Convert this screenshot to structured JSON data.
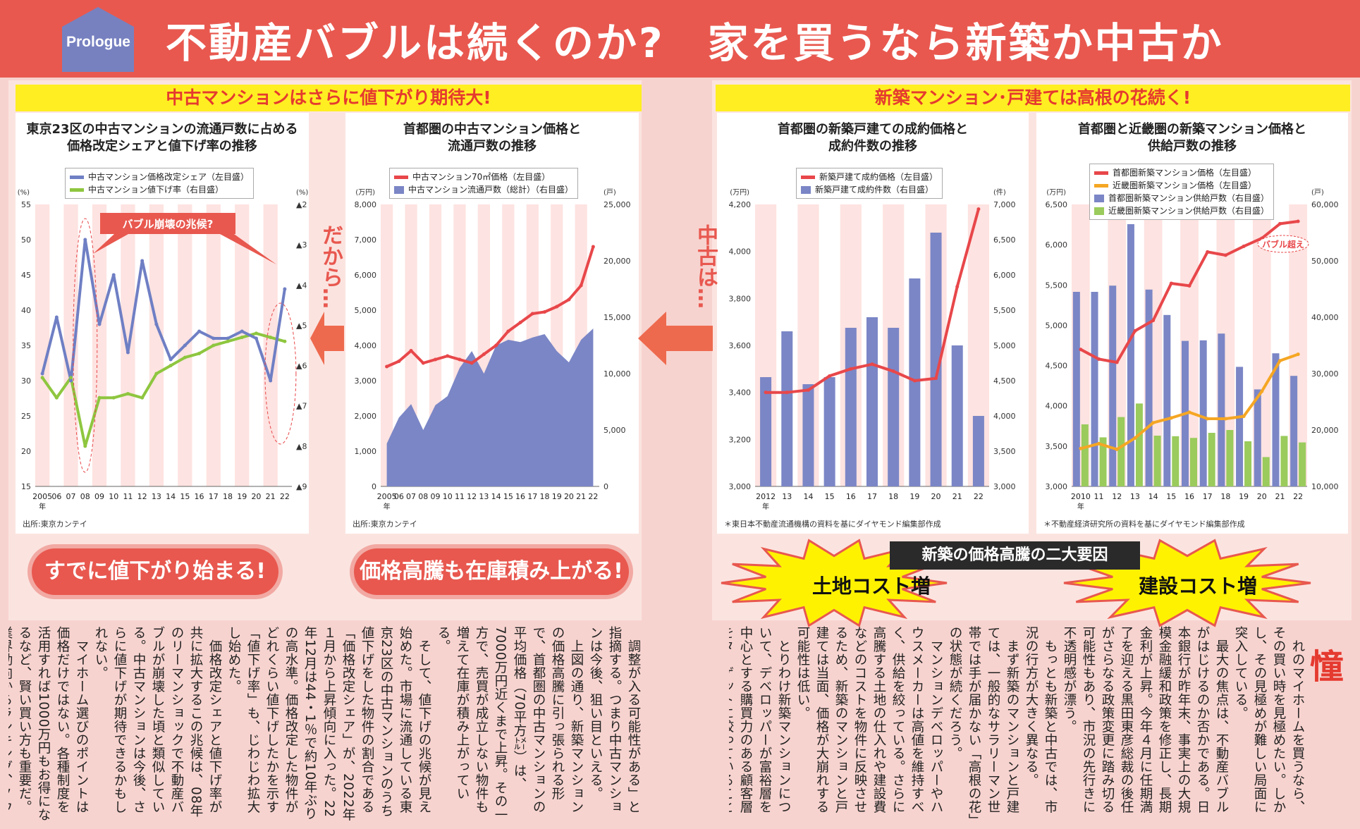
{
  "header": {
    "badge": "Prologue",
    "title": "不動産バブルは続くのか?　家を買うなら新築か中古か"
  },
  "banners": {
    "left": "中古マンションはさらに値下がり期待大!",
    "right": "新築マンション･戸建ては高根の花続く!"
  },
  "arrows": {
    "dakara": "だから…",
    "chuko_wa": "中古は…"
  },
  "pills": {
    "left": "すでに値下がり始まる!",
    "right": "価格高騰も在庫積み上がる!"
  },
  "factors": {
    "title": "新築の価格高騰の二大要因",
    "land": "土地コスト増",
    "construction": "建設コスト増"
  },
  "colors": {
    "header": "#e8584f",
    "banner_bg": "#ffee22",
    "banner_text": "#e53a2f",
    "blue_series": "#6f7fc4",
    "green_series": "#8ec63f",
    "red_series": "#e8474a",
    "orange_series": "#f5a623",
    "bar_blue": "#7b86c6",
    "bar_green": "#9acb5c"
  },
  "charts": {
    "c1": {
      "title": "東京23区の中古マンションの流通戸数に占める\n価格改定シェアと値下げ率の推移",
      "legend": [
        "中古マンション価格改定シェア（左目盛）",
        "中古マンション値下げ率（右目盛）"
      ],
      "left_unit": "(%)",
      "right_unit": "(%)",
      "left_ticks": [
        "55",
        "50",
        "45",
        "40",
        "35",
        "30",
        "25",
        "20",
        "15"
      ],
      "right_ticks": [
        "▲2",
        "▲3",
        "▲4",
        "▲5",
        "▲6",
        "▲7",
        "▲8",
        "▲9"
      ],
      "x_ticks": [
        "2005",
        "06",
        "07",
        "08",
        "09",
        "10",
        "11",
        "12",
        "13",
        "14",
        "15",
        "16",
        "17",
        "18",
        "19",
        "20",
        "21",
        "22"
      ],
      "x_suffix": "年",
      "callout": "バブル崩壊の兆候?",
      "source": "出所:東京カンテイ"
    },
    "c2": {
      "title": "首都圏の中古マンション価格と\n流通戸数の推移",
      "legend": [
        "中古マンション70㎡価格（左目盛）",
        "中古マンション流通戸数（総計）（右目盛）"
      ],
      "left_unit": "(万円)",
      "right_unit": "(戸)",
      "left_ticks": [
        "8,000",
        "7,000",
        "6,000",
        "5,000",
        "4,000",
        "3,000",
        "2,000",
        "1,000",
        "0"
      ],
      "right_ticks": [
        "25,000",
        "20,000",
        "15,000",
        "10,000",
        "5,000",
        "0"
      ],
      "x_ticks": [
        "2005",
        "06",
        "07",
        "08",
        "09",
        "10",
        "11",
        "12",
        "13",
        "14",
        "15",
        "16",
        "17",
        "18",
        "19",
        "20",
        "21",
        "22"
      ],
      "x_suffix": "年",
      "source": "出所:東京カンテイ"
    },
    "c3": {
      "title": "首都圏の新築戸建ての成約価格と\n成約件数の推移",
      "legend": [
        "新築戸建て成約価格（左目盛）",
        "新築戸建て成約件数（右目盛）"
      ],
      "left_unit": "(万円)",
      "right_unit": "(件)",
      "left_ticks": [
        "4,200",
        "4,000",
        "3,800",
        "3,600",
        "3,400",
        "3,200",
        "3,000"
      ],
      "right_ticks": [
        "7,000",
        "6,500",
        "6,000",
        "5,500",
        "5,000",
        "4,500",
        "4,000",
        "3,500",
        "3,000"
      ],
      "x_ticks": [
        "2012",
        "13",
        "14",
        "15",
        "16",
        "17",
        "18",
        "19",
        "20",
        "21",
        "22"
      ],
      "x_suffix": "年",
      "source": "＊東日本不動産流通機構の資料を基にダイヤモンド編集部作成"
    },
    "c4": {
      "title": "首都圏と近畿圏の新築マンション価格と\n供給戸数の推移",
      "legend": [
        "首都圏新築マンション価格（左目盛）",
        "近畿圏新築マンション価格（左目盛）",
        "首都圏新築マンション供給戸数（右目盛）",
        "近畿圏新築マンション供給戸数（右目盛）"
      ],
      "left_unit": "(万円)",
      "right_unit": "(戸)",
      "left_ticks": [
        "6,500",
        "6,000",
        "5,500",
        "5,000",
        "4,500",
        "4,000",
        "3,500",
        "3,000"
      ],
      "right_ticks": [
        "60,000",
        "50,000",
        "40,000",
        "30,000",
        "20,000",
        "10,000"
      ],
      "x_ticks": [
        "2010",
        "11",
        "12",
        "13",
        "14",
        "15",
        "16",
        "17",
        "18",
        "19",
        "20",
        "21",
        "22"
      ],
      "x_suffix": "年",
      "callout": "バブル超え",
      "source": "＊不動産経済研究所の資料を基にダイヤモンド編集部作成"
    }
  },
  "chart_data": [
    {
      "type": "line",
      "title": "東京23区の中古マンションの流通戸数に占める価格改定シェアと値下げ率の推移",
      "x": [
        2005,
        2006,
        2007,
        2008,
        2009,
        2010,
        2011,
        2012,
        2013,
        2014,
        2015,
        2016,
        2017,
        2018,
        2019,
        2020,
        2021,
        2022
      ],
      "series": [
        {
          "name": "中古マンション価格改定シェア（左目盛）",
          "axis": "left",
          "values": [
            31,
            39,
            30,
            50,
            38,
            45,
            34,
            47,
            38,
            33,
            35,
            37,
            36,
            36,
            37,
            36,
            30,
            43
          ]
        },
        {
          "name": "中古マンション値下げ率（右目盛）",
          "axis": "right",
          "values": [
            -6.3,
            -6.8,
            -6.3,
            -8.0,
            -6.8,
            -6.8,
            -6.7,
            -6.8,
            -6.2,
            -6.0,
            -5.8,
            -5.7,
            -5.5,
            -5.4,
            -5.3,
            -5.2,
            -5.3,
            -5.4
          ]
        }
      ],
      "ylim_left": [
        15,
        55
      ],
      "ylim_right": [
        -9,
        -2
      ]
    },
    {
      "type": "area",
      "title": "首都圏の中古マンション価格と流通戸数の推移",
      "x": [
        2005,
        2006,
        2007,
        2008,
        2009,
        2010,
        2011,
        2012,
        2013,
        2014,
        2015,
        2016,
        2017,
        2018,
        2019,
        2020,
        2021,
        2022
      ],
      "series": [
        {
          "name": "中古マンション70㎡価格（左目盛）",
          "type": "line",
          "axis": "left",
          "values": [
            3400,
            3550,
            3850,
            3500,
            3600,
            3700,
            3600,
            3500,
            3750,
            4000,
            4400,
            4650,
            4900,
            4950,
            5100,
            5300,
            5700,
            6800
          ]
        },
        {
          "name": "中古マンション流通戸数（総計）（右目盛）",
          "type": "area",
          "axis": "right",
          "values": [
            3800,
            6100,
            7300,
            5000,
            7200,
            8000,
            10500,
            12000,
            10000,
            12500,
            13000,
            12800,
            13200,
            13500,
            12000,
            11000,
            13000,
            14000
          ]
        }
      ],
      "ylim_left": [
        0,
        8000
      ],
      "ylim_right": [
        0,
        25000
      ]
    },
    {
      "type": "bar",
      "title": "首都圏の新築戸建ての成約価格と成約件数の推移",
      "categories": [
        "2012",
        "13",
        "14",
        "15",
        "16",
        "17",
        "18",
        "19",
        "20",
        "21",
        "22"
      ],
      "series": [
        {
          "name": "新築戸建て成約件数（右目盛）",
          "type": "bar",
          "axis": "right",
          "values": [
            4550,
            5200,
            4450,
            4550,
            5250,
            5400,
            5250,
            5950,
            6600,
            5000,
            4000
          ]
        },
        {
          "name": "新築戸建て成約価格（左目盛）",
          "type": "line",
          "axis": "left",
          "values": [
            3400,
            3400,
            3410,
            3470,
            3500,
            3520,
            3490,
            3450,
            3460,
            3850,
            4180
          ]
        }
      ],
      "ylim_left": [
        3000,
        4200
      ],
      "ylim_right": [
        3000,
        7000
      ]
    },
    {
      "type": "bar",
      "title": "首都圏と近畿圏の新築マンション価格と供給戸数の推移",
      "categories": [
        "2010",
        "11",
        "12",
        "13",
        "14",
        "15",
        "16",
        "17",
        "18",
        "19",
        "20",
        "21",
        "22"
      ],
      "series": [
        {
          "name": "首都圏新築マンション供給戸数（右目盛）",
          "type": "bar",
          "axis": "right",
          "values": [
            44500,
            44500,
            45600,
            56500,
            44900,
            40400,
            35800,
            35900,
            37100,
            31200,
            27200,
            33600,
            29600
          ]
        },
        {
          "name": "近畿圏新築マンション供給戸数（右目盛）",
          "type": "bar",
          "axis": "right",
          "values": [
            21000,
            18700,
            22300,
            24700,
            19000,
            18900,
            18600,
            19500,
            20000,
            18000,
            15200,
            18950,
            17800
          ]
        },
        {
          "name": "首都圏新築マンション価格（左目盛）",
          "type": "line",
          "axis": "left",
          "values": [
            4700,
            4580,
            4540,
            4930,
            5060,
            5520,
            5490,
            5910,
            5870,
            5980,
            6080,
            6260,
            6290
          ]
        },
        {
          "name": "近畿圏新築マンション価格（左目盛）",
          "type": "line",
          "axis": "left",
          "values": [
            3470,
            3530,
            3460,
            3600,
            3790,
            3850,
            3920,
            3840,
            3840,
            3870,
            4180,
            4560,
            4640
          ]
        }
      ],
      "ylim_left": [
        3000,
        6500
      ],
      "ylim_right": [
        10000,
        60000
      ]
    }
  ],
  "article": {
    "columns": [
      "れのマイホームを買うなら、その買い時を見極めたい。しかし、その見極めが難しい局面に突入している。",
      "最大の焦点は、不動産バブルがはじけるのか否かである。日本銀行が昨年末、事実上の大規模金融緩和政策を修正し、長期金利が上昇。今年４月に任期満了を迎える黒田東彦総裁の後任がさらなる政策変更に踏み切る可能性もあり、市況の先行きに不透明感が漂う。",
      "もっとも新築と中古では、市況の行方が大きく異なる。",
      "まず新築のマンションと戸建ては、一般的なサラリーマン世帯では手が届かない「高根の花」の状態が続くだろう。",
      "マンションデベロッパーやハウスメーカーは高値を維持すべく、供給を絞っている。さらに高騰する土地の仕入れや建設費などのコストを物件に反映させるため、新築のマンションと戸建ては当面、価格が大崩れする可能性は低い。",
      "とりわけ新築マンションについて、デベロッパーが富裕層を中心とする購買力のある顧客層をターゲットに絞っていることも大きい。",
      "これに対し、中古市場はどうか。東京カンテイの高橋雅之主任研究員は「市場で売買される中古マンションの方が、新築より先に価格",
      "調整が入る可能性がある」と指摘する。つまり中古マンションは今後、狙い目といえる。",
      "上図の通り、新築マンションの価格高騰に引っ張られる形で、首都圏の中古マンションの平均価格（70平方㍍）は、7000万円近くまで上昇。その一方で、売買が成立しない物件も増えて在庫が積み上がっている。",
      "そして、値下げの兆候が見え始めた。市場に流通している東京23区の中古マンションのうち値下げをした物件の割合である「価格改定シェア」が、2022年１月から上昇傾向に入った。22年12月は44・1％で約10年ぶりの高水準。価格改定した物件がどれくらい値下げしたかを示す「値下げ率」も、じわじわ拡大し始めた。",
      "価格改定シェアと値下げ率が共に拡大するこの兆候は、08年のリーマンショックで不動産バブルが崩壊した頃と類似している。中古マンションは今後、さらに値下げが期待できるかもしれない。",
      "マイホーム選びのポイントは価格だけではない。各種制度を活用すれば1000万円もお得になるなど、賢い買い方も重要だ。業界動向からランキング、ノウハウまで、「バブルでも失敗しない」不動産購入術と節税術をお届けする。"
    ],
    "initial": "憧"
  }
}
